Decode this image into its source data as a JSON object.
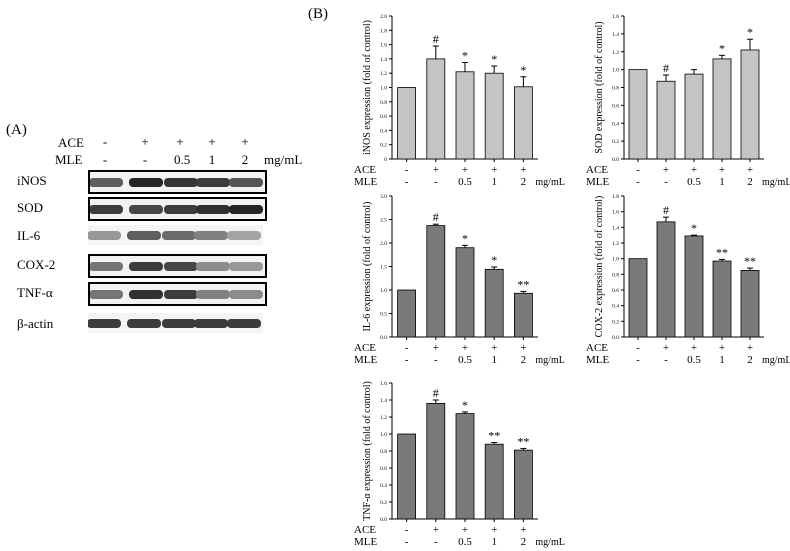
{
  "panel_a": {
    "label": "(A)",
    "ace_label": "ACE",
    "mle_label": "MLE",
    "ace_values": [
      "-",
      "+",
      "+",
      "+",
      "+"
    ],
    "mle_values": [
      "-",
      "-",
      "0.5",
      "1",
      "2"
    ],
    "unit": "mg/mL",
    "blots": [
      {
        "name": "iNOS",
        "boxed": true,
        "intensity": [
          0.7,
          0.95,
          0.88,
          0.85,
          0.75
        ]
      },
      {
        "name": "SOD",
        "boxed": true,
        "intensity": [
          0.85,
          0.8,
          0.85,
          0.9,
          0.95
        ]
      },
      {
        "name": "IL-6",
        "boxed": false,
        "intensity": [
          0.45,
          0.7,
          0.65,
          0.55,
          0.4
        ]
      },
      {
        "name": "COX-2",
        "boxed": true,
        "intensity": [
          0.6,
          0.85,
          0.8,
          0.5,
          0.45
        ]
      },
      {
        "name": "TNF-α",
        "boxed": true,
        "intensity": [
          0.6,
          0.9,
          0.85,
          0.55,
          0.5
        ]
      },
      {
        "name": "β-actin",
        "boxed": false,
        "intensity": [
          0.85,
          0.85,
          0.85,
          0.85,
          0.85
        ]
      }
    ]
  },
  "panel_b": {
    "label": "(B)"
  },
  "chart_data": [
    {
      "type": "bar",
      "ylabel": "iNOS expression (fold of control)",
      "ylim": [
        0,
        2.0
      ],
      "yticks": [
        0,
        0.2,
        0.4,
        0.6,
        0.8,
        1.0,
        1.2,
        1.4,
        1.6,
        1.8,
        2.0
      ],
      "ytick_labels": [
        "0",
        "0.2",
        "0.4",
        "0.6",
        "0.8",
        "1.0",
        "1.2",
        "1.4",
        "1.6",
        "1.8",
        "2.0"
      ],
      "ace": [
        "-",
        "+",
        "+",
        "+",
        "+"
      ],
      "mle": [
        "-",
        "-",
        "0.5",
        "1",
        "2"
      ],
      "unit": "mg/mL",
      "row_labels": [
        "ACE",
        "MLE"
      ],
      "values": [
        1.0,
        1.4,
        1.22,
        1.2,
        1.01
      ],
      "errors": [
        0.0,
        0.18,
        0.13,
        0.1,
        0.14
      ],
      "marks": [
        "",
        "#",
        "*",
        "*",
        "*"
      ],
      "color": "#c4c4c4"
    },
    {
      "type": "bar",
      "ylabel": "SOD expression (fold of control)",
      "ylim": [
        0,
        1.6
      ],
      "yticks": [
        0,
        0.2,
        0.4,
        0.6,
        0.8,
        1.0,
        1.2,
        1.4,
        1.6
      ],
      "ytick_labels": [
        "0.0",
        "0.2",
        "0.4",
        "0.6",
        "0.8",
        "1.0",
        "1.2",
        "1.4",
        "1.6"
      ],
      "ace": [
        "-",
        "+",
        "+",
        "+",
        "+"
      ],
      "mle": [
        "-",
        "-",
        "0.5",
        "1",
        "2"
      ],
      "unit": "mg/mL",
      "row_labels": [
        "ACE",
        "MLE"
      ],
      "values": [
        1.0,
        0.87,
        0.95,
        1.12,
        1.22
      ],
      "errors": [
        0.0,
        0.07,
        0.05,
        0.04,
        0.12
      ],
      "marks": [
        "",
        "#",
        "",
        "*",
        "*"
      ],
      "color": "#c4c4c4"
    },
    {
      "type": "bar",
      "ylabel": "IL-6 expression (fold of control)",
      "ylim": [
        0,
        3.0
      ],
      "yticks": [
        0,
        0.5,
        1.0,
        1.5,
        2.0,
        2.5,
        3.0
      ],
      "ytick_labels": [
        "0.0",
        "0.5",
        "1.0",
        "1.5",
        "2.0",
        "2.5",
        "3.0"
      ],
      "ace": [
        "-",
        "+",
        "+",
        "+",
        "+"
      ],
      "mle": [
        "-",
        "-",
        "0.5",
        "1",
        "2"
      ],
      "unit": "mg/mL",
      "row_labels": [
        "ACE",
        "MLE"
      ],
      "values": [
        1.0,
        2.37,
        1.9,
        1.44,
        0.93
      ],
      "errors": [
        0.0,
        0.03,
        0.05,
        0.05,
        0.04
      ],
      "marks": [
        "",
        "#",
        "*",
        "*",
        "**"
      ],
      "color": "#7a7a7a"
    },
    {
      "type": "bar",
      "ylabel": "COX-2 expression (fold of control)",
      "ylim": [
        0,
        1.8
      ],
      "yticks": [
        0,
        0.2,
        0.4,
        0.6,
        0.8,
        1.0,
        1.2,
        1.4,
        1.6,
        1.8
      ],
      "ytick_labels": [
        "0.0",
        "0.2",
        "0.4",
        "0.6",
        "0.8",
        "1.0",
        "1.2",
        "1.4",
        "1.6",
        "1.8"
      ],
      "ace": [
        "-",
        "+",
        "+",
        "+",
        "+"
      ],
      "mle": [
        "-",
        "-",
        "0.5",
        "1",
        "2"
      ],
      "unit": "mg/mL",
      "row_labels": [
        "ACE",
        "MLE"
      ],
      "values": [
        1.0,
        1.47,
        1.29,
        0.97,
        0.85
      ],
      "errors": [
        0.0,
        0.06,
        0.01,
        0.02,
        0.03
      ],
      "marks": [
        "",
        "#",
        "*",
        "**",
        "**"
      ],
      "color": "#7a7a7a"
    },
    {
      "type": "bar",
      "ylabel": "TNF-α expression (fold of control)",
      "ylim": [
        0,
        1.6
      ],
      "yticks": [
        0,
        0.2,
        0.4,
        0.6,
        0.8,
        1.0,
        1.2,
        1.4,
        1.6
      ],
      "ytick_labels": [
        "0.0",
        "0.2",
        "0.4",
        "0.6",
        "0.8",
        "1.0",
        "1.2",
        "1.4",
        "1.6"
      ],
      "ace": [
        "-",
        "+",
        "+",
        "+",
        "+"
      ],
      "mle": [
        "-",
        "-",
        "0.5",
        "1",
        "2"
      ],
      "unit": "mg/mL",
      "row_labels": [
        "ACE",
        "MLE"
      ],
      "values": [
        1.0,
        1.36,
        1.24,
        0.88,
        0.81
      ],
      "errors": [
        0.0,
        0.04,
        0.02,
        0.02,
        0.02
      ],
      "marks": [
        "",
        "#",
        "*",
        "**",
        "**"
      ],
      "color": "#7a7a7a"
    }
  ]
}
